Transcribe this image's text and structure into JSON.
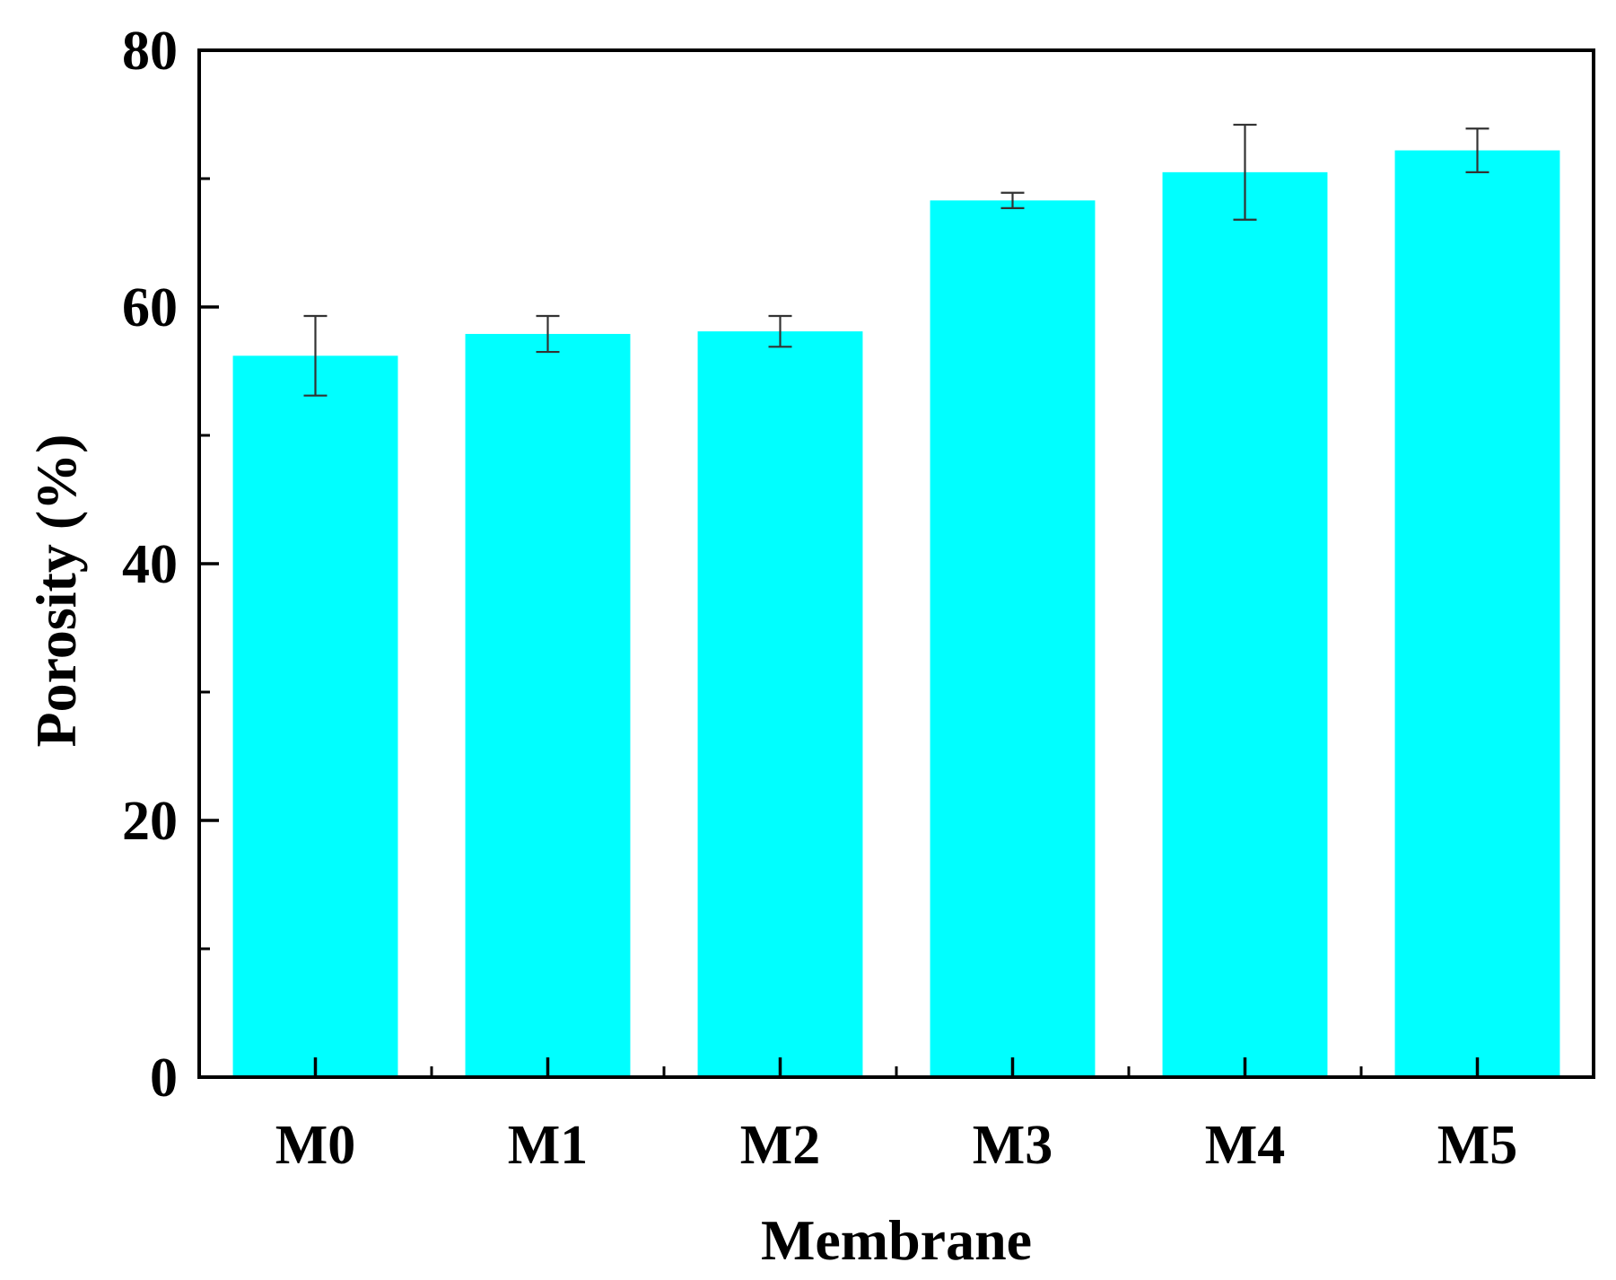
{
  "chart_data": {
    "type": "bar",
    "title": "",
    "xlabel": "Membrane",
    "ylabel": "Porosity (%)",
    "categories": [
      "M0",
      "M1",
      "M2",
      "M3",
      "M4",
      "M5"
    ],
    "series": [
      {
        "values": [
          56.2,
          57.9,
          58.1,
          68.3,
          70.5,
          72.2
        ],
        "errors": [
          3.1,
          1.4,
          1.2,
          0.6,
          3.7,
          1.7
        ]
      }
    ],
    "ylim": [
      0,
      80
    ],
    "yticks_major": [
      0,
      20,
      40,
      60,
      80
    ],
    "yticks_minor": [
      10,
      30,
      50,
      70
    ],
    "grid": false,
    "legend": "none",
    "bar_color": "#00FFFF",
    "axis_color": "#000000"
  }
}
